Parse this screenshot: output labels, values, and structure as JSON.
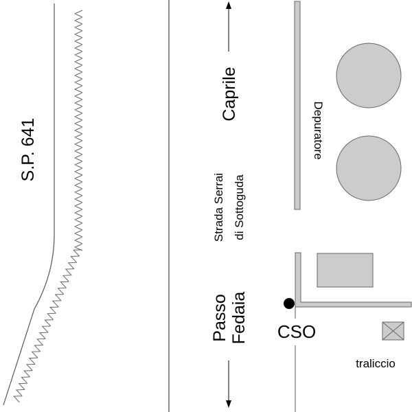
{
  "labels": {
    "road_sp": "S.P. 641",
    "caprile": "Caprile",
    "strada_line1": "Strada Serrai",
    "strada_line2": "di Sottoguda",
    "passo_line1": "Passo",
    "passo_line2": "Fedaia",
    "depuratore": "Depuratore",
    "cso": "CSO",
    "traliccio": "traliccio"
  },
  "colors": {
    "structure_fill": "#cccccc",
    "line": "#555555",
    "marker": "#000000"
  }
}
